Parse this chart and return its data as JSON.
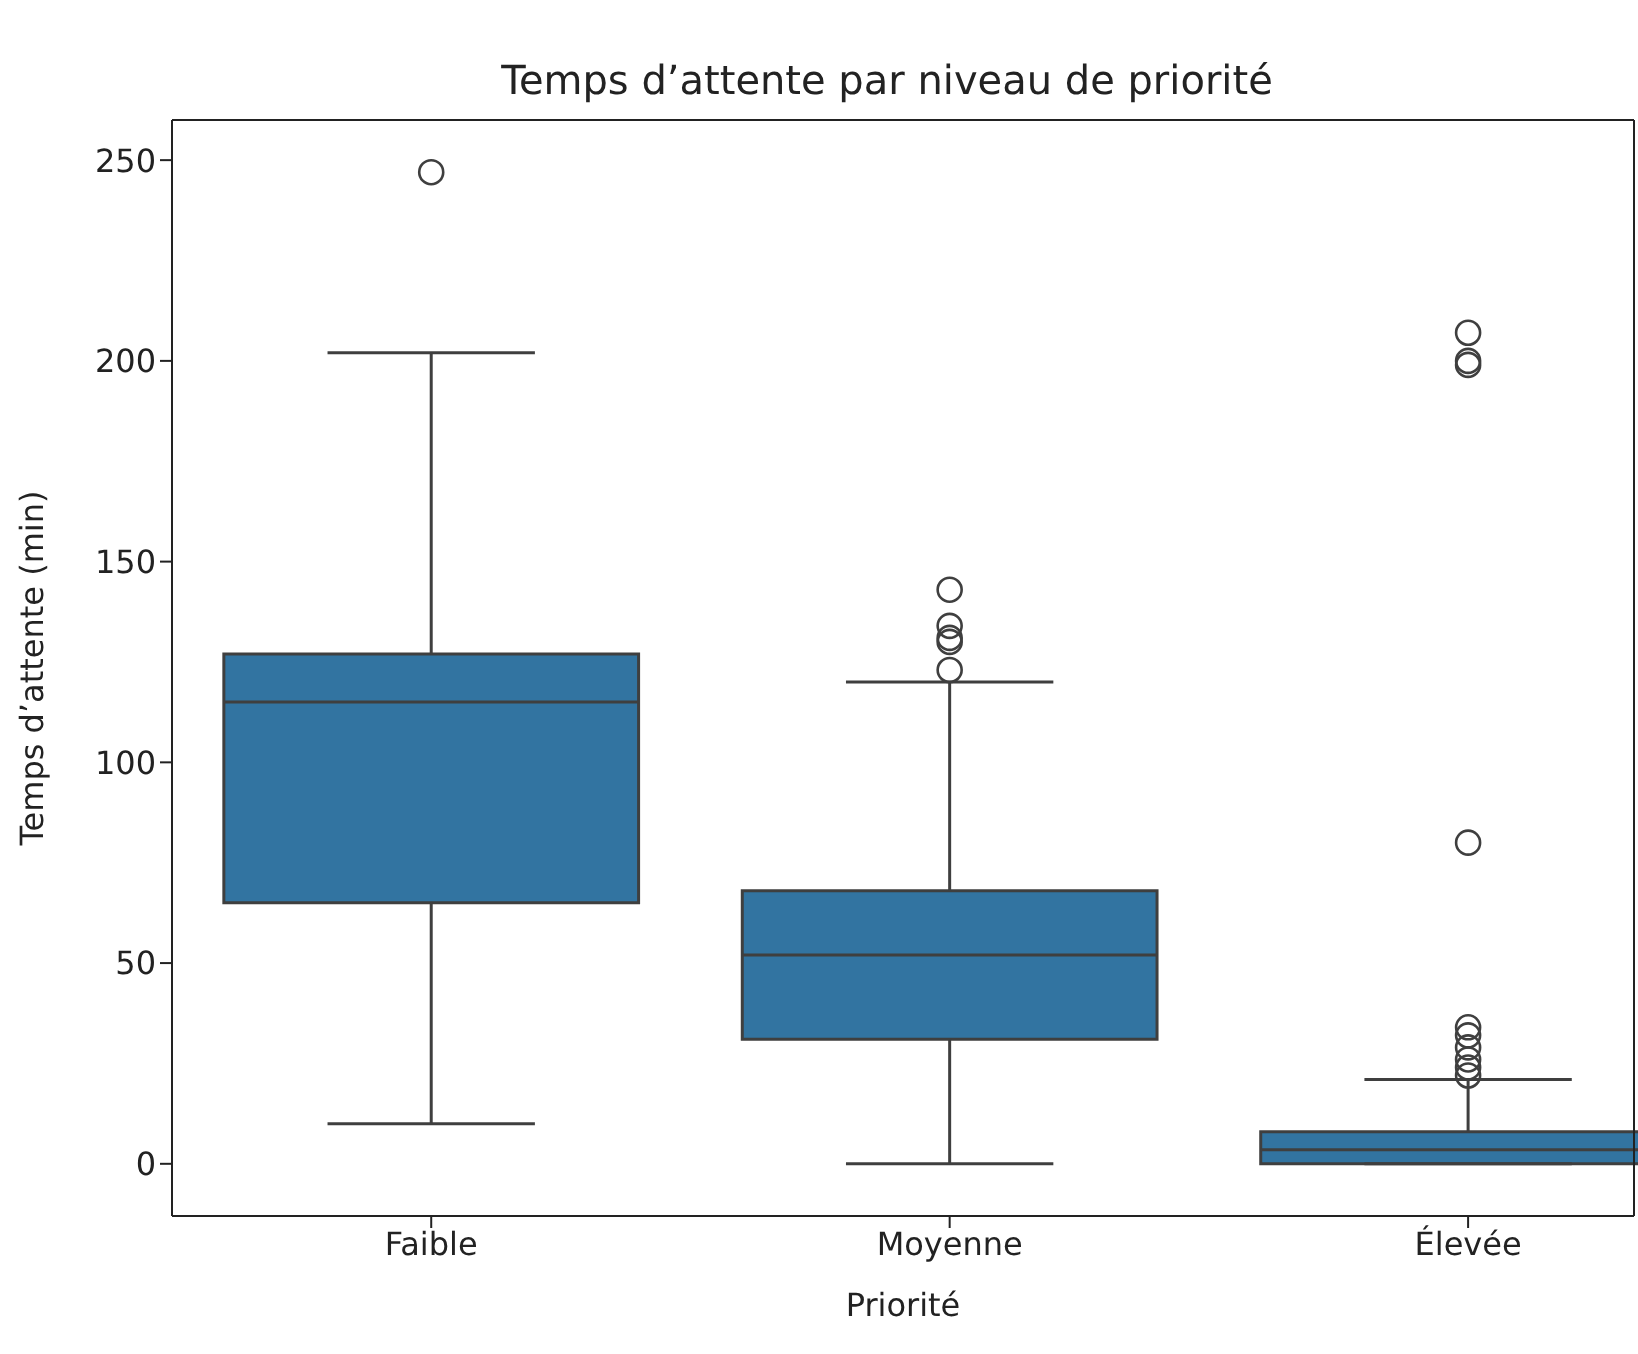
{
  "chart_data": {
    "type": "box",
    "title": "Temps d’attente par niveau de priorité",
    "xlabel": "Priorité",
    "ylabel": "Temps d’attente (min)",
    "categories": [
      "Faible",
      "Moyenne",
      "Élevée"
    ],
    "color": "#3274a1",
    "ylim": [
      -13,
      260
    ],
    "yticks": [
      0,
      50,
      100,
      150,
      200,
      250
    ],
    "boxes": [
      {
        "low": 10,
        "q1": 65,
        "median": 115,
        "q3": 127,
        "high": 202,
        "outliers": [
          247
        ]
      },
      {
        "low": 0,
        "q1": 31,
        "median": 52,
        "q3": 68,
        "high": 120,
        "outliers": [
          143,
          134,
          131,
          130,
          123
        ]
      },
      {
        "low": 0,
        "q1": 0,
        "median": 3.5,
        "q3": 8,
        "high": 21,
        "outliers": [
          207,
          200,
          199,
          80,
          34,
          32,
          29,
          26,
          24,
          22
        ]
      }
    ]
  }
}
